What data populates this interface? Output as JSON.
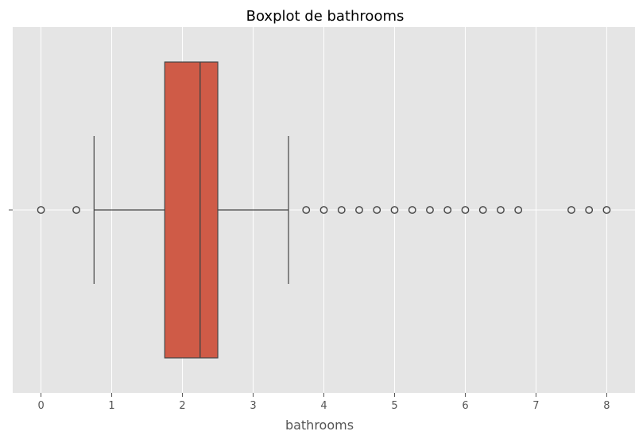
{
  "chart_data": {
    "type": "boxplot",
    "title": "Boxplot de bathrooms",
    "xlabel": "bathrooms",
    "ylabel": "",
    "xlim": [
      -0.4,
      8.4
    ],
    "xticks": [
      0,
      1,
      2,
      3,
      4,
      5,
      6,
      7,
      8
    ],
    "xtick_labels": [
      "0",
      "1",
      "2",
      "3",
      "4",
      "5",
      "6",
      "7",
      "8"
    ],
    "ytick_labels": [
      "-"
    ],
    "grid": true,
    "orientation": "horizontal",
    "box": {
      "q1": 1.75,
      "median": 2.25,
      "q3": 2.5,
      "whisker_low": 0.75,
      "whisker_high": 3.5,
      "color": "#cf5b47",
      "edge_color": "#444444"
    },
    "outliers": [
      0,
      0.5,
      3.75,
      4,
      4.25,
      4.5,
      4.75,
      5,
      5.25,
      5.5,
      5.75,
      6,
      6.25,
      6.5,
      6.75,
      7.5,
      7.75,
      8
    ]
  },
  "colors": {
    "background": "#e5e5e5",
    "grid": "#ffffff",
    "axis_text": "#555555"
  }
}
